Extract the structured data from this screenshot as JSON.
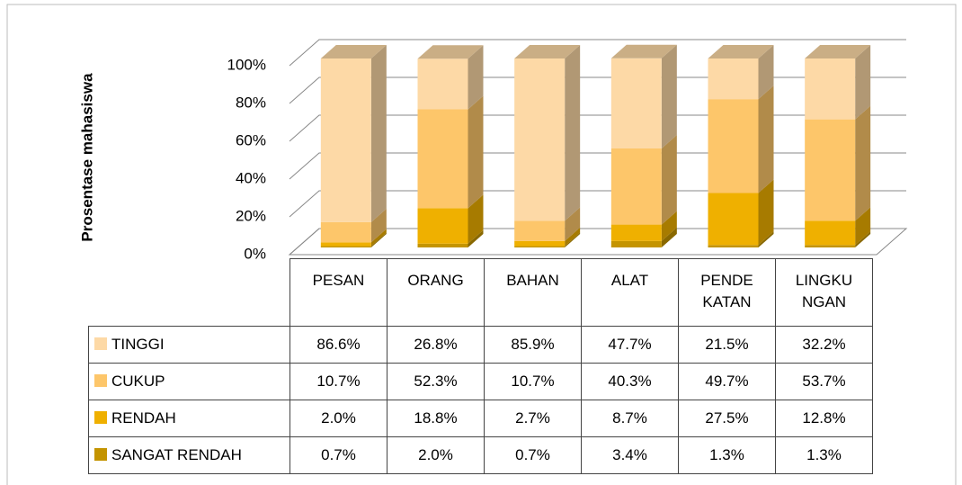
{
  "chart_data": {
    "type": "bar3d_stacked_percent",
    "y_axis_label": "Prosentase mahasiswa",
    "categories": [
      "PESAN",
      "ORANG",
      "BAHAN",
      "ALAT",
      "PENDE KATAN",
      "LINGKU NGAN"
    ],
    "series": [
      {
        "name": "TINGGI",
        "color": "#fdd9a6",
        "values": [
          86.6,
          26.8,
          85.9,
          47.7,
          21.5,
          32.2
        ],
        "value_labels": [
          "86.6%",
          "26.8%",
          "85.9%",
          "47.7%",
          "21.5%",
          "32.2%"
        ]
      },
      {
        "name": "CUKUP",
        "color": "#fdc66a",
        "values": [
          10.7,
          52.3,
          10.7,
          40.3,
          49.7,
          53.7
        ],
        "value_labels": [
          "10.7%",
          "52.3%",
          "10.7%",
          "40.3%",
          "49.7%",
          "53.7%"
        ]
      },
      {
        "name": "RENDAH",
        "color": "#efb000",
        "values": [
          2.0,
          18.8,
          2.7,
          8.7,
          27.5,
          12.8
        ],
        "value_labels": [
          "2.0%",
          "18.8%",
          "2.7%",
          "8.7%",
          "27.5%",
          "12.8%"
        ]
      },
      {
        "name": "SANGAT RENDAH",
        "color": "#c49400",
        "values": [
          0.7,
          2.0,
          0.7,
          3.4,
          1.3,
          1.3
        ],
        "value_labels": [
          "0.7%",
          "2.0%",
          "0.7%",
          "3.4%",
          "1.3%",
          "1.3%"
        ]
      }
    ],
    "ylim": [
      0,
      100
    ],
    "yticks": [
      {
        "value": 0,
        "label": "0%"
      },
      {
        "value": 20,
        "label": "20%"
      },
      {
        "value": 40,
        "label": "40%"
      },
      {
        "value": 60,
        "label": "60%"
      },
      {
        "value": 80,
        "label": "80%"
      },
      {
        "value": 100,
        "label": "100%"
      }
    ],
    "grid": true
  }
}
